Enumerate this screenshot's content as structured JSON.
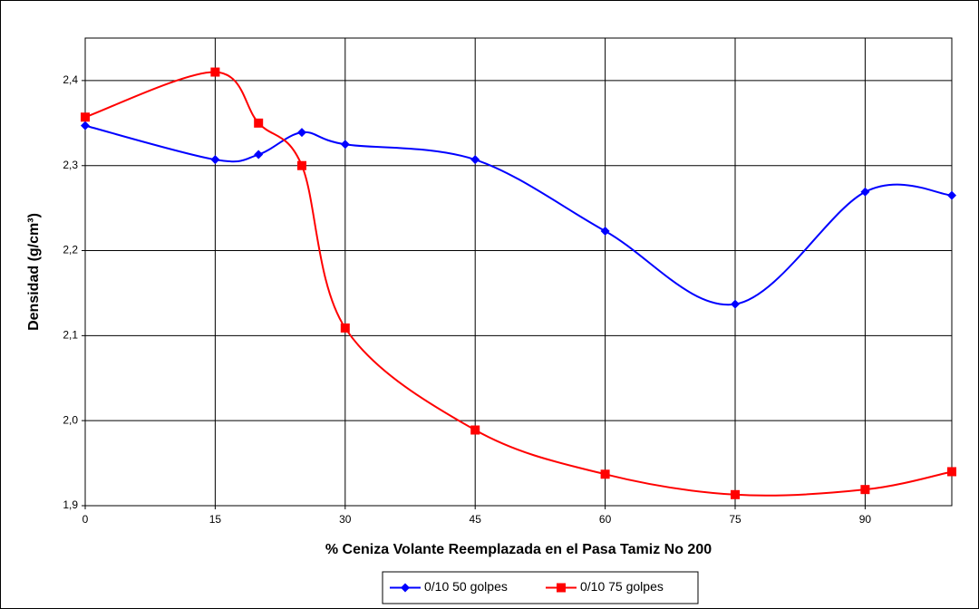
{
  "chart_data": {
    "type": "line",
    "x_label": "% Ceniza Volante Reemplazada en el Pasa Tamiz No 200",
    "y_label": "Densidad (g/cm³)",
    "xlim": [
      0,
      100
    ],
    "xticks": [
      0,
      15,
      30,
      45,
      60,
      75,
      90
    ],
    "ylim": [
      1.9,
      2.45
    ],
    "yticks": [
      {
        "value": 1.9,
        "label": "1,9"
      },
      {
        "value": 2.0,
        "label": "2,0"
      },
      {
        "value": 2.1,
        "label": "2,1"
      },
      {
        "value": 2.2,
        "label": "2,2"
      },
      {
        "value": 2.3,
        "label": "2,3"
      },
      {
        "value": 2.4,
        "label": "2,4"
      }
    ],
    "grid": true,
    "smooth": true,
    "legend": "bottom",
    "x": [
      0,
      15,
      20,
      25,
      30,
      45,
      60,
      75,
      90,
      100
    ],
    "series": [
      {
        "name": "0/10 50 golpes",
        "color": "#0000ff",
        "marker": "diamond",
        "values": [
          2.347,
          2.307,
          2.313,
          2.339,
          2.325,
          2.307,
          2.223,
          2.137,
          2.269,
          2.265
        ]
      },
      {
        "name": "0/10 75 golpes",
        "color": "#ff0000",
        "marker": "square",
        "values": [
          2.357,
          2.41,
          2.35,
          2.3,
          2.109,
          1.989,
          1.937,
          1.913,
          1.919,
          1.94
        ]
      }
    ]
  }
}
